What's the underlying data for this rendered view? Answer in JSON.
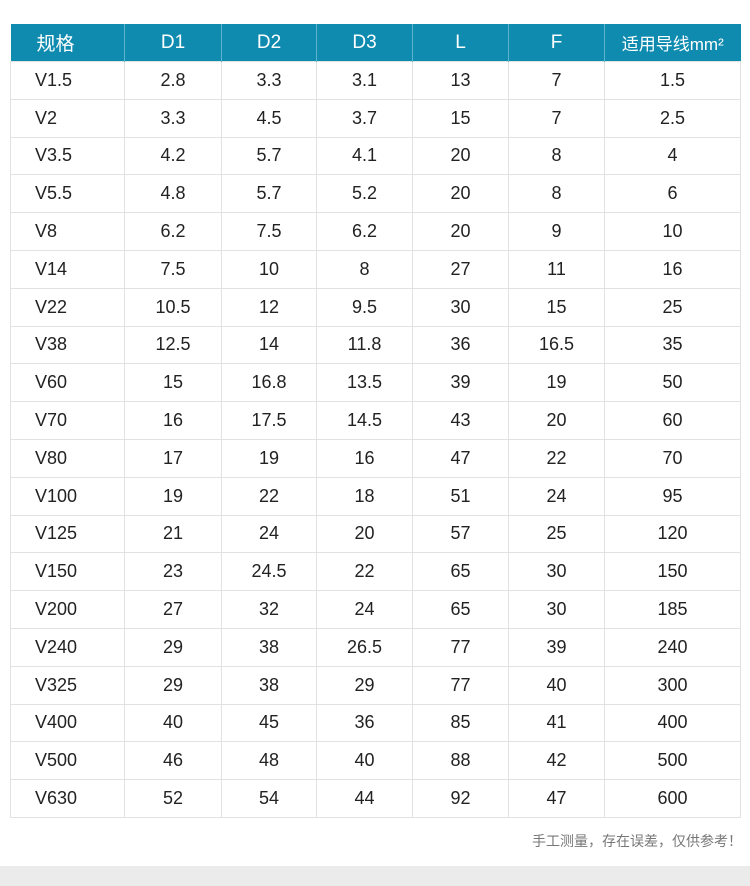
{
  "table": {
    "headers": [
      "规格",
      "D1",
      "D2",
      "D3",
      "L",
      "F",
      "适用导线mm²"
    ],
    "rows": [
      [
        "V1.5",
        "2.8",
        "3.3",
        "3.1",
        "13",
        "7",
        "1.5"
      ],
      [
        "V2",
        "3.3",
        "4.5",
        "3.7",
        "15",
        "7",
        "2.5"
      ],
      [
        "V3.5",
        "4.2",
        "5.7",
        "4.1",
        "20",
        "8",
        "4"
      ],
      [
        "V5.5",
        "4.8",
        "5.7",
        "5.2",
        "20",
        "8",
        "6"
      ],
      [
        "V8",
        "6.2",
        "7.5",
        "6.2",
        "20",
        "9",
        "10"
      ],
      [
        "V14",
        "7.5",
        "10",
        "8",
        "27",
        "11",
        "16"
      ],
      [
        "V22",
        "10.5",
        "12",
        "9.5",
        "30",
        "15",
        "25"
      ],
      [
        "V38",
        "12.5",
        "14",
        "11.8",
        "36",
        "16.5",
        "35"
      ],
      [
        "V60",
        "15",
        "16.8",
        "13.5",
        "39",
        "19",
        "50"
      ],
      [
        "V70",
        "16",
        "17.5",
        "14.5",
        "43",
        "20",
        "60"
      ],
      [
        "V80",
        "17",
        "19",
        "16",
        "47",
        "22",
        "70"
      ],
      [
        "V100",
        "19",
        "22",
        "18",
        "51",
        "24",
        "95"
      ],
      [
        "V125",
        "21",
        "24",
        "20",
        "57",
        "25",
        "120"
      ],
      [
        "V150",
        "23",
        "24.5",
        "22",
        "65",
        "30",
        "150"
      ],
      [
        "V200",
        "27",
        "32",
        "24",
        "65",
        "30",
        "185"
      ],
      [
        "V240",
        "29",
        "38",
        "26.5",
        "77",
        "39",
        "240"
      ],
      [
        "V325",
        "29",
        "38",
        "29",
        "77",
        "40",
        "300"
      ],
      [
        "V400",
        "40",
        "45",
        "36",
        "85",
        "41",
        "400"
      ],
      [
        "V500",
        "46",
        "48",
        "40",
        "88",
        "42",
        "500"
      ],
      [
        "V630",
        "52",
        "54",
        "44",
        "92",
        "47",
        "600"
      ]
    ]
  },
  "note": "手工测量，存在误差，仅供参考！",
  "colors": {
    "header_bg": "#0f8bb0",
    "header_text": "#ffffff"
  }
}
